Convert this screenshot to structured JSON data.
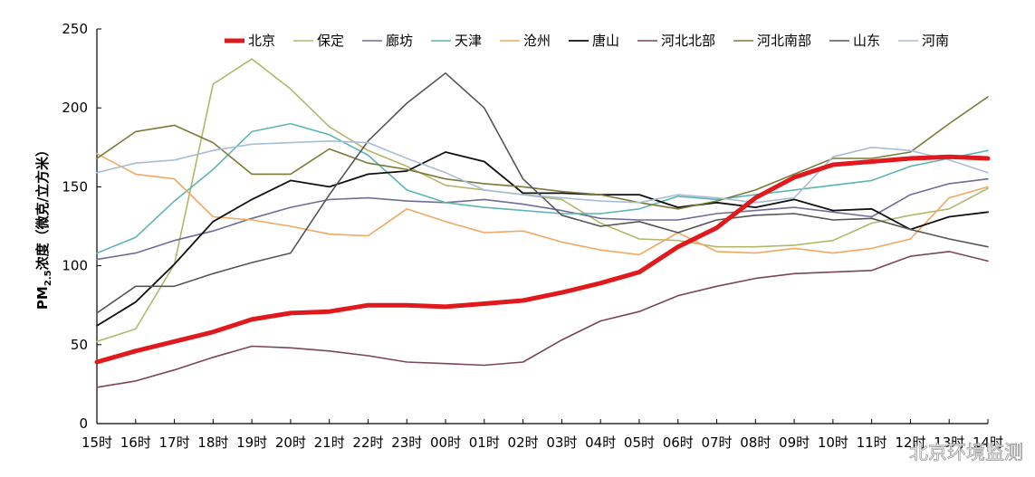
{
  "chart_data": {
    "type": "line",
    "title": "",
    "xlabel": "",
    "ylabel_main": "PM",
    "ylabel_sub": "2.5",
    "ylabel_rest": "浓度（微克/立方米）",
    "ylim": [
      0,
      250
    ],
    "yticks": [
      0,
      50,
      100,
      150,
      200,
      250
    ],
    "legend_position": "top",
    "grid": false,
    "categories": [
      "15时",
      "16时",
      "17时",
      "18时",
      "19时",
      "20时",
      "21时",
      "22时",
      "23时",
      "00时",
      "01时",
      "02时",
      "03时",
      "04时",
      "05时",
      "06时",
      "07时",
      "08时",
      "09时",
      "10时",
      "11时",
      "12时",
      "13时",
      "14时"
    ],
    "series": [
      {
        "name": "北京",
        "color": "#e0191c",
        "width": 5,
        "values": [
          39,
          46,
          52,
          58,
          66,
          70,
          71,
          75,
          75,
          74,
          76,
          78,
          83,
          89,
          96,
          112,
          124,
          143,
          156,
          164,
          166,
          168,
          169,
          168
        ]
      },
      {
        "name": "保定",
        "color": "#b1b76a",
        "width": 1.6,
        "values": [
          52,
          60,
          101,
          215,
          231,
          212,
          188,
          173,
          163,
          151,
          148,
          145,
          142,
          127,
          117,
          116,
          112,
          112,
          113,
          116,
          127,
          132,
          136,
          149
        ]
      },
      {
        "name": "廊坊",
        "color": "#6f6d97",
        "width": 1.6,
        "values": [
          104,
          108,
          116,
          122,
          130,
          137,
          142,
          143,
          141,
          140,
          142,
          139,
          135,
          130,
          129,
          129,
          133,
          135,
          137,
          134,
          131,
          145,
          152,
          155
        ]
      },
      {
        "name": "天津",
        "color": "#5cb5b4",
        "width": 1.6,
        "values": [
          108,
          118,
          141,
          161,
          185,
          190,
          183,
          170,
          148,
          140,
          137,
          135,
          133,
          133,
          136,
          144,
          142,
          145,
          148,
          151,
          154,
          163,
          168,
          173
        ]
      },
      {
        "name": "沧州",
        "color": "#f0a862",
        "width": 1.6,
        "values": [
          171,
          158,
          155,
          131,
          129,
          125,
          120,
          119,
          136,
          128,
          121,
          122,
          115,
          110,
          107,
          121,
          109,
          108,
          111,
          108,
          111,
          117,
          143,
          150
        ]
      },
      {
        "name": "唐山",
        "color": "#111111",
        "width": 1.8,
        "values": [
          62,
          77,
          101,
          128,
          142,
          154,
          150,
          158,
          160,
          172,
          166,
          146,
          146,
          145,
          145,
          137,
          140,
          137,
          142,
          135,
          136,
          123,
          131,
          134
        ]
      },
      {
        "name": "河北北部",
        "color": "#7a4558",
        "width": 1.6,
        "values": [
          23,
          27,
          34,
          42,
          49,
          48,
          46,
          43,
          39,
          38,
          37,
          39,
          53,
          65,
          71,
          81,
          87,
          92,
          95,
          96,
          97,
          106,
          109,
          103
        ]
      },
      {
        "name": "河北南部",
        "color": "#7a7a3b",
        "width": 1.6,
        "values": [
          168,
          185,
          189,
          178,
          158,
          158,
          174,
          165,
          161,
          155,
          152,
          150,
          147,
          145,
          140,
          136,
          141,
          148,
          158,
          168,
          168,
          172,
          190,
          207
        ]
      },
      {
        "name": "山东",
        "color": "#555555",
        "width": 1.6,
        "values": [
          70,
          87,
          87,
          95,
          102,
          108,
          145,
          179,
          203,
          222,
          200,
          155,
          132,
          125,
          128,
          121,
          129,
          132,
          133,
          129,
          130,
          123,
          117,
          112
        ]
      },
      {
        "name": "河南",
        "color": "#a8bdd6",
        "width": 1.6,
        "values": [
          159,
          165,
          167,
          173,
          177,
          178,
          179,
          178,
          168,
          159,
          148,
          145,
          143,
          141,
          140,
          145,
          143,
          140,
          143,
          169,
          175,
          173,
          167,
          159
        ]
      }
    ]
  },
  "watermark": {
    "text": "北京环境监测"
  }
}
